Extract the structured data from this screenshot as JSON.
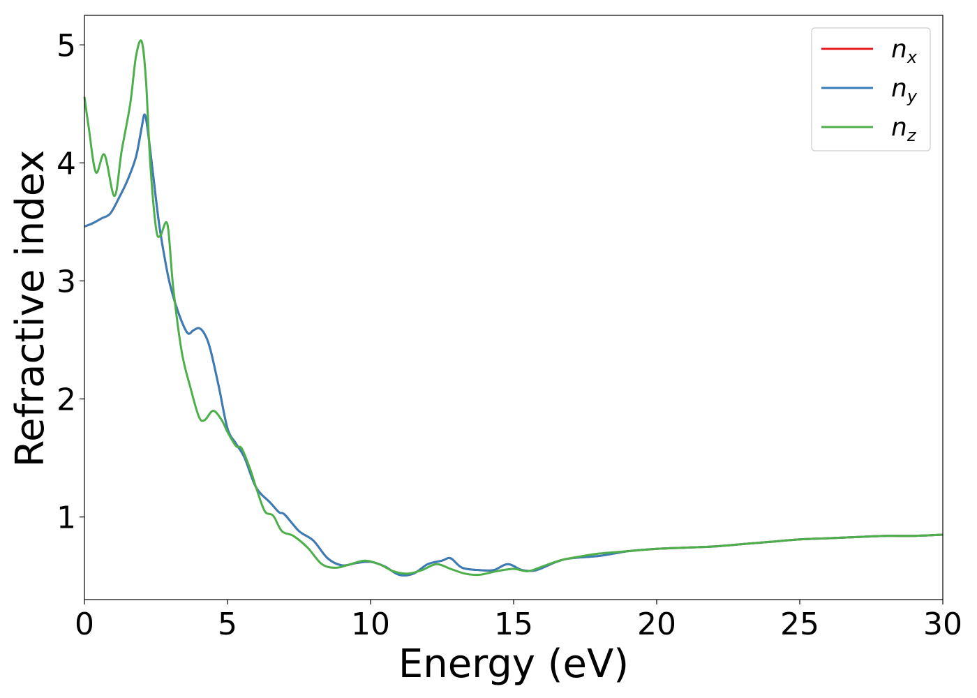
{
  "chart_data": {
    "type": "line",
    "xlabel": "Energy (eV)",
    "ylabel": "Refractive index",
    "xlim": [
      0,
      30
    ],
    "ylim": [
      0.3,
      5.25
    ],
    "xticks": [
      0,
      5,
      10,
      15,
      20,
      25,
      30
    ],
    "yticks": [
      1,
      2,
      3,
      4,
      5
    ],
    "grid": false,
    "legend_position": "top-right",
    "series": [
      {
        "name": "n_x",
        "label_base": "n",
        "label_sub": "x",
        "color": "#e41a1c",
        "x": [
          0,
          0.3,
          0.6,
          0.9,
          1.2,
          1.5,
          1.8,
          2.0,
          2.1,
          2.2,
          2.4,
          2.6,
          2.8,
          3.0,
          3.3,
          3.6,
          3.8,
          4.0,
          4.2,
          4.4,
          4.7,
          5.0,
          5.3,
          5.6,
          6.0,
          6.5,
          6.8,
          7.0,
          7.5,
          8.0,
          8.5,
          9.0,
          9.5,
          10.0,
          10.5,
          11.0,
          11.5,
          12.0,
          12.5,
          12.8,
          13.2,
          13.8,
          14.3,
          14.8,
          15.3,
          15.8,
          16.5,
          17.0,
          18.0,
          19.0,
          20.0,
          21.0,
          22.0,
          23.0,
          24.0,
          25.0,
          26.0,
          27.0,
          28.0,
          29.0,
          30.0
        ],
        "y": [
          3.46,
          3.49,
          3.53,
          3.57,
          3.7,
          3.85,
          4.05,
          4.3,
          4.41,
          4.3,
          3.9,
          3.5,
          3.2,
          2.96,
          2.72,
          2.56,
          2.58,
          2.6,
          2.55,
          2.42,
          2.1,
          1.75,
          1.62,
          1.5,
          1.25,
          1.12,
          1.04,
          1.02,
          0.88,
          0.8,
          0.65,
          0.59,
          0.61,
          0.62,
          0.58,
          0.51,
          0.52,
          0.6,
          0.63,
          0.65,
          0.57,
          0.55,
          0.55,
          0.6,
          0.55,
          0.55,
          0.62,
          0.65,
          0.67,
          0.71,
          0.73,
          0.74,
          0.75,
          0.77,
          0.79,
          0.81,
          0.82,
          0.83,
          0.84,
          0.84,
          0.85
        ]
      },
      {
        "name": "n_y",
        "label_base": "n",
        "label_sub": "y",
        "color": "#377eb8",
        "x": [
          0,
          0.3,
          0.6,
          0.9,
          1.2,
          1.5,
          1.8,
          2.0,
          2.1,
          2.2,
          2.4,
          2.6,
          2.8,
          3.0,
          3.3,
          3.6,
          3.8,
          4.0,
          4.2,
          4.4,
          4.7,
          5.0,
          5.3,
          5.6,
          6.0,
          6.5,
          6.8,
          7.0,
          7.5,
          8.0,
          8.5,
          9.0,
          9.5,
          10.0,
          10.5,
          11.0,
          11.5,
          12.0,
          12.5,
          12.8,
          13.2,
          13.8,
          14.3,
          14.8,
          15.3,
          15.8,
          16.5,
          17.0,
          18.0,
          19.0,
          20.0,
          21.0,
          22.0,
          23.0,
          24.0,
          25.0,
          26.0,
          27.0,
          28.0,
          29.0,
          30.0
        ],
        "y": [
          3.46,
          3.49,
          3.53,
          3.57,
          3.7,
          3.85,
          4.05,
          4.3,
          4.41,
          4.3,
          3.9,
          3.5,
          3.2,
          2.96,
          2.72,
          2.56,
          2.58,
          2.6,
          2.55,
          2.42,
          2.1,
          1.75,
          1.62,
          1.5,
          1.25,
          1.12,
          1.04,
          1.02,
          0.88,
          0.8,
          0.65,
          0.59,
          0.61,
          0.62,
          0.58,
          0.51,
          0.52,
          0.6,
          0.63,
          0.65,
          0.57,
          0.55,
          0.55,
          0.6,
          0.55,
          0.55,
          0.62,
          0.65,
          0.67,
          0.71,
          0.73,
          0.74,
          0.75,
          0.77,
          0.79,
          0.81,
          0.82,
          0.83,
          0.84,
          0.84,
          0.85
        ]
      },
      {
        "name": "n_z",
        "label_base": "n",
        "label_sub": "z",
        "color": "#4daf4a",
        "x": [
          0,
          0.15,
          0.4,
          0.7,
          1.05,
          1.3,
          1.6,
          1.8,
          2.0,
          2.15,
          2.3,
          2.5,
          2.65,
          2.9,
          3.1,
          3.4,
          3.7,
          4.0,
          4.2,
          4.5,
          4.8,
          5.0,
          5.3,
          5.5,
          5.8,
          6.0,
          6.3,
          6.6,
          6.9,
          7.3,
          7.8,
          8.3,
          8.8,
          9.3,
          9.8,
          10.3,
          10.8,
          11.3,
          11.8,
          12.3,
          12.8,
          13.3,
          13.8,
          14.4,
          15.0,
          15.5,
          16.0,
          16.6,
          17.2,
          18.0,
          19.0,
          20.0,
          21.0,
          22.0,
          23.0,
          24.0,
          25.0,
          26.0,
          27.0,
          28.0,
          29.0,
          30.0
        ],
        "y": [
          4.56,
          4.3,
          3.92,
          4.07,
          3.72,
          4.1,
          4.5,
          4.9,
          5.03,
          4.7,
          4.0,
          3.45,
          3.38,
          3.48,
          2.95,
          2.4,
          2.1,
          1.85,
          1.82,
          1.9,
          1.82,
          1.72,
          1.6,
          1.58,
          1.4,
          1.25,
          1.05,
          1.01,
          0.88,
          0.84,
          0.74,
          0.6,
          0.57,
          0.6,
          0.63,
          0.6,
          0.54,
          0.52,
          0.55,
          0.6,
          0.56,
          0.52,
          0.51,
          0.54,
          0.56,
          0.54,
          0.58,
          0.63,
          0.66,
          0.69,
          0.71,
          0.73,
          0.74,
          0.75,
          0.77,
          0.79,
          0.81,
          0.82,
          0.83,
          0.84,
          0.84,
          0.85
        ]
      }
    ]
  }
}
